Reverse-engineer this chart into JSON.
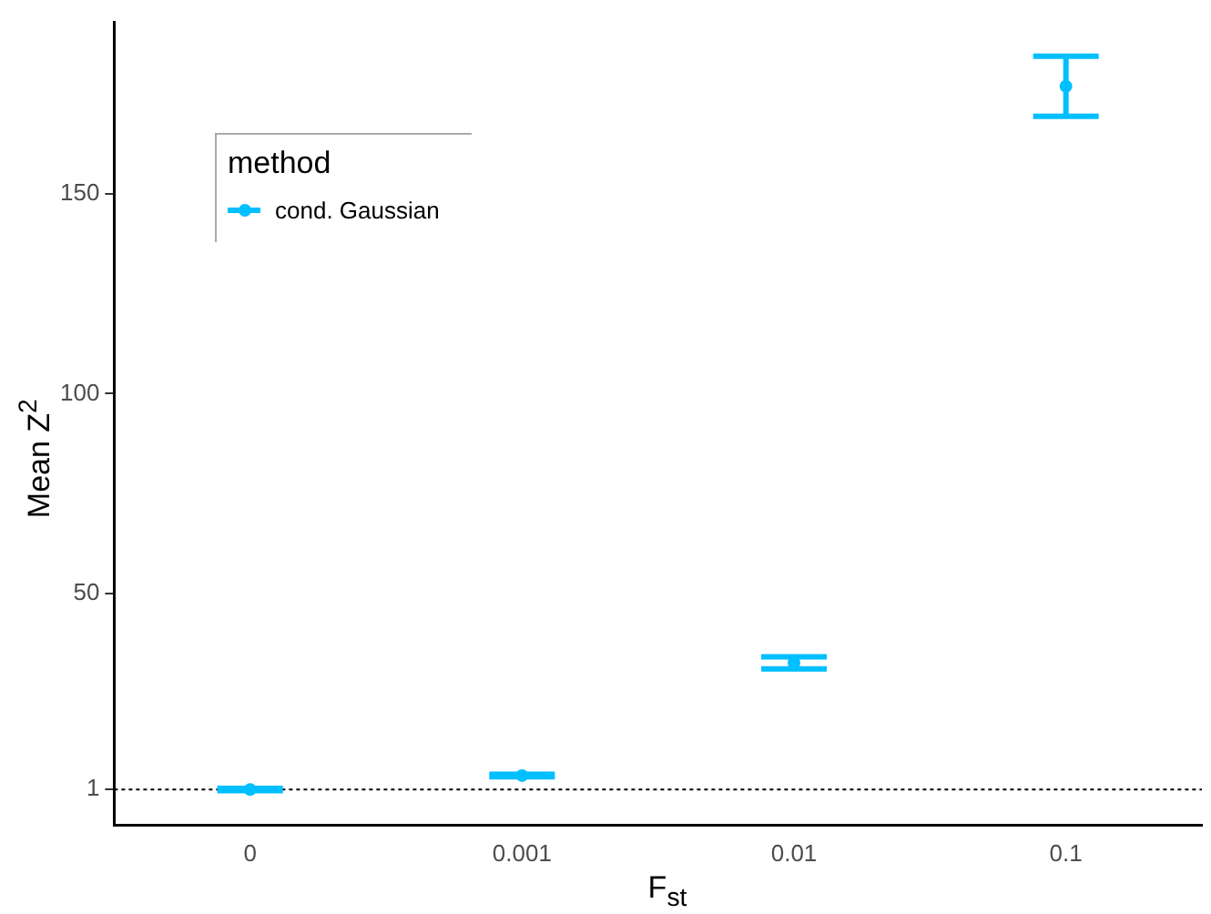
{
  "chart_data": {
    "type": "scatter",
    "xlabel": "F$_{st}$",
    "ylabel": "Mean Z$^{2}$",
    "legend_title": "method",
    "categories": [
      "0",
      "0.001",
      "0.01",
      "0.1"
    ],
    "series": [
      {
        "name": "cond. Gaussian",
        "color": "#00bfff",
        "values": [
          1.0,
          4.5,
          32.7,
          176.9
        ],
        "errors": [
          [
            0.7,
            1.3
          ],
          [
            4.2,
            4.8
          ],
          [
            31.2,
            34.2
          ],
          [
            169.4,
            184.4
          ]
        ]
      }
    ],
    "ylim": [
      -8,
      193
    ],
    "yticks": [
      1,
      50,
      100,
      150
    ],
    "grid": false,
    "legend": "top left",
    "marker": "circle",
    "ref_lines": [
      {
        "axis": "y",
        "value": 1,
        "color": "#000000",
        "line_style": "dotted"
      }
    ]
  }
}
